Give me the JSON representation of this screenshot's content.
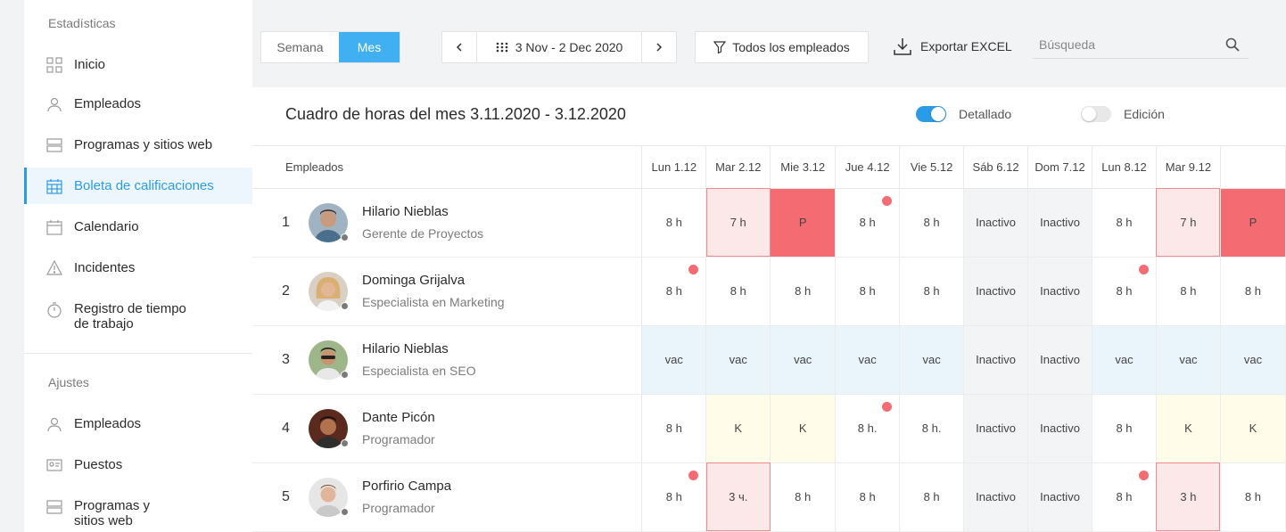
{
  "sidebar": {
    "stats_title": "Estadísticas",
    "items": [
      {
        "label": "Inicio",
        "icon": "grid-icon"
      },
      {
        "label": "Empleados",
        "icon": "user-icon"
      },
      {
        "label": "Programas y sitios web",
        "icon": "server-icon"
      },
      {
        "label": "Boleta de calificaciones",
        "icon": "calendar-grid-icon"
      },
      {
        "label": "Calendario",
        "icon": "calendar-icon"
      },
      {
        "label": "Incidentes",
        "icon": "warning-icon"
      },
      {
        "label_line1": "Registro de tiempo",
        "label_line2": "de trabajo",
        "icon": "stopwatch-icon"
      }
    ],
    "settings_title": "Ajustes",
    "settings_items": [
      {
        "label": "Empleados",
        "icon": "user-icon"
      },
      {
        "label": "Puestos",
        "icon": "id-card-icon"
      },
      {
        "label_line1": "Programas y",
        "label_line2": "sitios web",
        "icon": "server-icon"
      }
    ]
  },
  "toolbar": {
    "week_label": "Semana",
    "month_label": "Mes",
    "date_range": "3 Nov - 2 Dec 2020",
    "prev_label": "‹",
    "next_label": "›",
    "filter_label": "Todos los empleados",
    "export_label": "Exportar EXCEL",
    "search_placeholder": "Búsqueda"
  },
  "panel": {
    "title": "Cuadro de horas del mes 3.11.2020 - 3.12.2020",
    "detailed_label": "Detallado",
    "edit_label": "Edición"
  },
  "table": {
    "employees_header": "Empleados",
    "days": [
      "Lun 1.12",
      "Mar 2.12",
      "Mie 3.12",
      "Jue 4.12",
      "Vie 5.12",
      "Sáb 6.12",
      "Dom 7.12",
      "Lun 8.12",
      "Mar 9.12",
      ""
    ],
    "rows": [
      {
        "num": "1",
        "name": "Hilario Nieblas",
        "role": "Gerente de Proyectos",
        "cells": [
          "8 h",
          "7 h",
          "P",
          "8 h",
          "8 h",
          "Inactivo",
          "Inactivo",
          "8 h",
          "7 h",
          "P"
        ]
      },
      {
        "num": "2",
        "name": "Dominga Grijalva",
        "role": "Especialista en Marketing",
        "cells": [
          "8 h",
          "8 h",
          "8 h",
          "8 h",
          "8 h",
          "Inactivo",
          "Inactivo",
          "8 h",
          "8 h",
          "8 h"
        ]
      },
      {
        "num": "3",
        "name": "Hilario Nieblas",
        "role": "Especialista en SEO",
        "cells": [
          "vac",
          "vac",
          "vac",
          "vac",
          "vac",
          "Inactivo",
          "Inactivo",
          "vac",
          "vac",
          "vac"
        ]
      },
      {
        "num": "4",
        "name": "Dante Picón",
        "role": "Programador",
        "cells": [
          "8 h",
          "K",
          "K",
          "8 h.",
          "8 h.",
          "Inactivo",
          "Inactivo",
          "8 h",
          "K",
          "K"
        ]
      },
      {
        "num": "5",
        "name": "Porfirio Campa",
        "role": "Programador",
        "cells": [
          "8 h",
          "3 ч.",
          "8 h",
          "8 h",
          "8 h",
          "Inactivo",
          "Inactivo",
          "8 h",
          "3 h",
          "8 h"
        ]
      }
    ]
  },
  "colors": {
    "accent": "#2a9be6",
    "danger": "#f46b72",
    "vacation_bg": "#e9f4fb",
    "k_bg": "#fffdea"
  }
}
